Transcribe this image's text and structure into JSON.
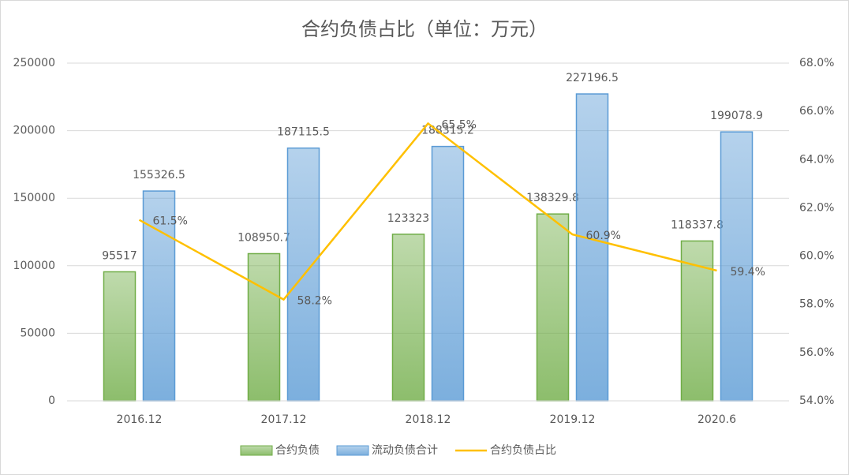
{
  "chart_data": {
    "type": "bar-line",
    "title": "合约负债占比（单位：万元）",
    "categories": [
      "2016.12",
      "2017.12",
      "2018.12",
      "2019.12",
      "2020.6"
    ],
    "series": [
      {
        "name": "合约负债",
        "type": "bar",
        "color": "#70ad47",
        "values": [
          95517,
          108950.7,
          123323,
          138329.8,
          118337.8
        ]
      },
      {
        "name": "流动负债合计",
        "type": "bar",
        "color": "#5b9bd5",
        "values": [
          155326.5,
          187115.5,
          188315.2,
          227196.5,
          199078.9
        ]
      },
      {
        "name": "合约负债占比",
        "type": "line",
        "axis": "y2",
        "color": "#ffc000",
        "values": [
          61.5,
          58.2,
          65.5,
          60.9,
          59.4
        ],
        "value_labels": [
          "61.5%",
          "58.2%",
          "65.5%",
          "60.9%",
          "59.4%"
        ]
      }
    ],
    "ylim": [
      0,
      250000
    ],
    "yticks": [
      0,
      50000,
      100000,
      150000,
      200000,
      250000
    ],
    "y2lim": [
      54,
      68
    ],
    "y2ticks": [
      {
        "value": 54,
        "label": "54.0%"
      },
      {
        "value": 56,
        "label": "56.0%"
      },
      {
        "value": 58,
        "label": "58.0%"
      },
      {
        "value": 60,
        "label": "60.0%"
      },
      {
        "value": 62,
        "label": "62.0%"
      },
      {
        "value": 64,
        "label": "64.0%"
      },
      {
        "value": 66,
        "label": "66.0%"
      },
      {
        "value": 68,
        "label": "68.0%"
      }
    ],
    "grid": true,
    "legend": "bottom"
  }
}
